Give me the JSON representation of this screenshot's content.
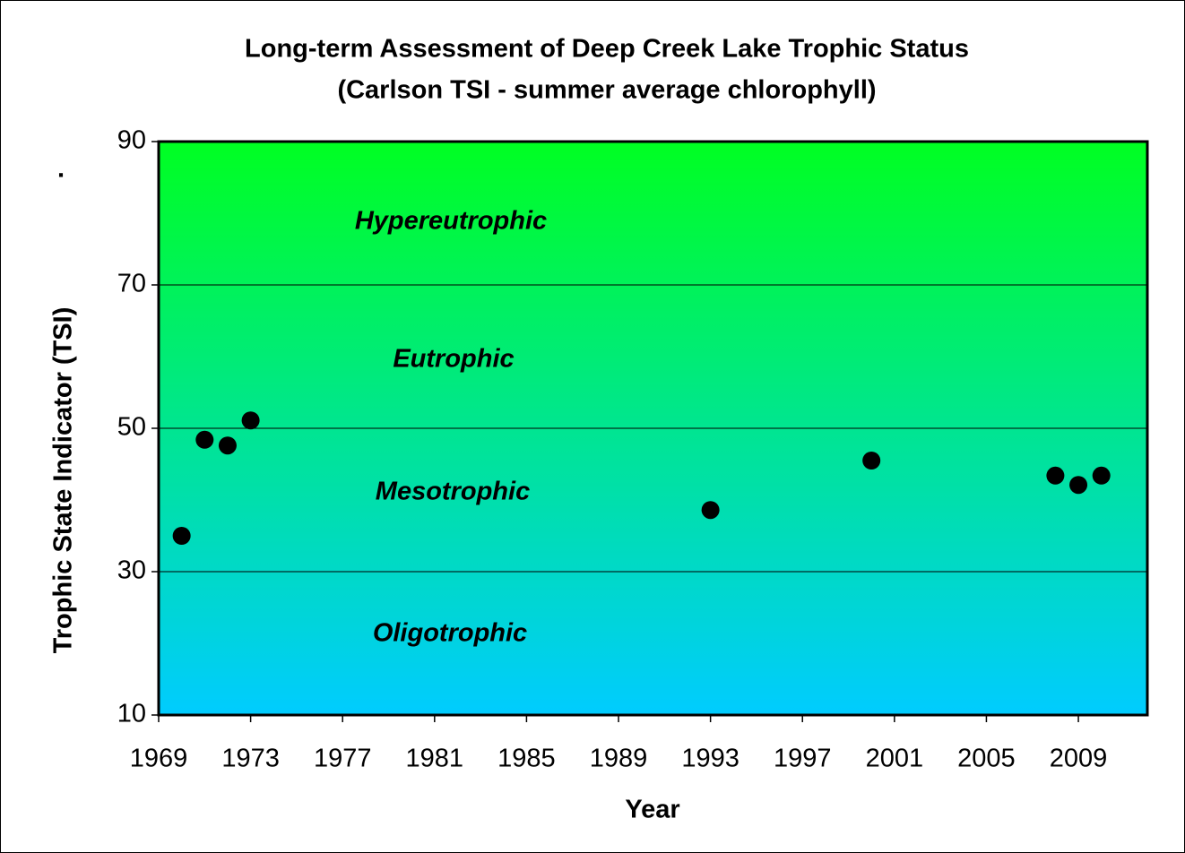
{
  "chart_data": {
    "type": "scatter",
    "title": "Long-term Assessment of Deep Creek Lake Trophic Status",
    "subtitle": "(Carlson TSI - summer average chlorophyll)",
    "x_label": "Year",
    "y_label": "Trophic State Indicator (TSI)",
    "corner_mark": ".",
    "annotations": [
      "Hypereutrophic",
      "Eutrophic",
      "Mesotrophic",
      "Oligotrophic"
    ],
    "x": [
      1970,
      1971,
      1972,
      1973,
      1993,
      2000,
      2008,
      2009,
      2010
    ],
    "values": [
      35,
      48.4,
      47.6,
      51.1,
      38.6,
      45.5,
      43.4,
      42.1,
      43.4
    ],
    "color": "#000000",
    "background_gradient": [
      "#00ff22",
      "#00ccff"
    ],
    "xlim": [
      1969,
      2012
    ],
    "xticks": [
      1969,
      1973,
      1977,
      1981,
      1985,
      1989,
      1993,
      1997,
      2001,
      2005,
      2009
    ],
    "ylim": [
      10,
      90
    ],
    "yticks": [
      10,
      30,
      50,
      70,
      90
    ],
    "grid": true
  }
}
